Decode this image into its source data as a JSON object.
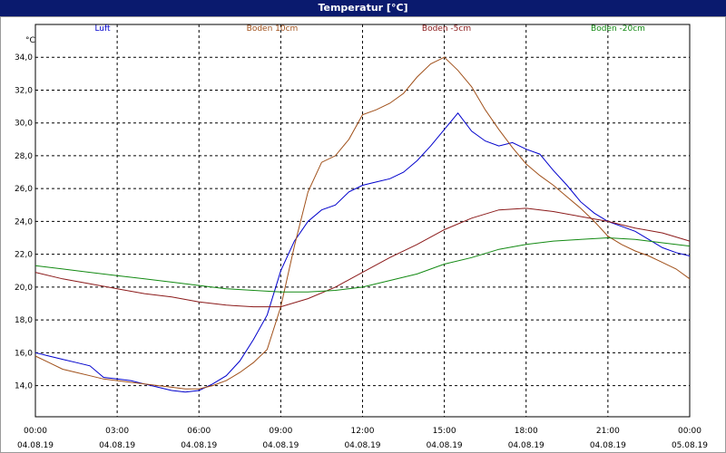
{
  "window": {
    "title": "Temperatur [°C]"
  },
  "chart_data": {
    "type": "line",
    "title": "Temperatur [°C]",
    "ylabel": "°C",
    "xlabel": "",
    "ylim": [
      12.1,
      36.0
    ],
    "xlim": [
      0,
      24
    ],
    "grid": true,
    "legend_placement": "top",
    "y_ticks": [
      "14,0",
      "16,0",
      "18,0",
      "20,0",
      "22,0",
      "24,0",
      "26,0",
      "28,0",
      "30,0",
      "32,0",
      "34,0"
    ],
    "y_tick_values": [
      14,
      16,
      18,
      20,
      22,
      24,
      26,
      28,
      30,
      32,
      34
    ],
    "x_ticks": [
      {
        "time": "00:00",
        "date": "04.08.19"
      },
      {
        "time": "03:00",
        "date": "04.08.19"
      },
      {
        "time": "06:00",
        "date": "04.08.19"
      },
      {
        "time": "09:00",
        "date": "04.08.19"
      },
      {
        "time": "12:00",
        "date": "04.08.19"
      },
      {
        "time": "15:00",
        "date": "04.08.19"
      },
      {
        "time": "18:00",
        "date": "04.08.19"
      },
      {
        "time": "21:00",
        "date": "04.08.19"
      },
      {
        "time": "00:00",
        "date": "05.08.19"
      }
    ],
    "x_tick_values": [
      0,
      3,
      6,
      9,
      12,
      15,
      18,
      21,
      24
    ],
    "series": [
      {
        "name": "Luft",
        "color": "#0000cc",
        "x": [
          0,
          0.5,
          1,
          1.5,
          2,
          2.5,
          3,
          3.5,
          4,
          4.5,
          5,
          5.5,
          6,
          6.5,
          7,
          7.5,
          8,
          8.5,
          9,
          9.5,
          10,
          10.5,
          11,
          11.5,
          12,
          12.5,
          13,
          13.5,
          14,
          14.5,
          15,
          15.5,
          16,
          16.5,
          17,
          17.5,
          18,
          18.5,
          19,
          19.5,
          20,
          20.5,
          21,
          21.5,
          22,
          22.5,
          23,
          23.5,
          24
        ],
        "values": [
          16.0,
          15.8,
          15.6,
          15.4,
          15.2,
          14.5,
          14.4,
          14.3,
          14.1,
          13.9,
          13.7,
          13.6,
          13.7,
          14.1,
          14.6,
          15.5,
          16.8,
          18.3,
          21.0,
          22.8,
          24.0,
          24.7,
          25.0,
          25.8,
          26.2,
          26.4,
          26.6,
          27.0,
          27.7,
          28.6,
          29.6,
          30.6,
          29.5,
          28.9,
          28.6,
          28.8,
          28.4,
          28.1,
          27.1,
          26.2,
          25.2,
          24.5,
          24.0,
          23.7,
          23.4,
          22.9,
          22.4,
          22.1,
          21.9
        ]
      },
      {
        "name": "Boden 10cm",
        "color": "#a0501a",
        "x": [
          0,
          0.5,
          1,
          1.5,
          2,
          2.5,
          3,
          3.5,
          4,
          4.5,
          5,
          5.5,
          6,
          6.5,
          7,
          7.5,
          8,
          8.5,
          9,
          9.5,
          10,
          10.5,
          11,
          11.5,
          12,
          12.5,
          13,
          13.5,
          14,
          14.5,
          15,
          15.5,
          16,
          16.5,
          17,
          17.5,
          18,
          18.5,
          19,
          19.5,
          20,
          20.5,
          21,
          21.5,
          22,
          22.5,
          23,
          23.5,
          24
        ],
        "values": [
          15.8,
          15.4,
          15.0,
          14.8,
          14.6,
          14.4,
          14.3,
          14.2,
          14.1,
          14.0,
          13.9,
          13.8,
          13.8,
          14.0,
          14.3,
          14.8,
          15.4,
          16.2,
          18.8,
          22.5,
          25.8,
          27.6,
          28.0,
          29.0,
          30.5,
          30.8,
          31.2,
          31.8,
          32.8,
          33.6,
          34.0,
          33.2,
          32.2,
          30.8,
          29.6,
          28.5,
          27.5,
          26.8,
          26.2,
          25.5,
          24.8,
          24.0,
          23.1,
          22.6,
          22.2,
          21.9,
          21.5,
          21.1,
          20.5
        ]
      },
      {
        "name": "Boden -5cm",
        "color": "#8b1a1a",
        "x": [
          0,
          1,
          2,
          3,
          4,
          5,
          6,
          7,
          8,
          9,
          10,
          11,
          12,
          13,
          14,
          15,
          16,
          17,
          18,
          19,
          20,
          21,
          22,
          23,
          24
        ],
        "values": [
          20.9,
          20.5,
          20.2,
          19.9,
          19.6,
          19.4,
          19.1,
          18.9,
          18.8,
          18.8,
          19.3,
          20.0,
          20.9,
          21.8,
          22.6,
          23.5,
          24.2,
          24.7,
          24.8,
          24.6,
          24.3,
          24.0,
          23.6,
          23.3,
          22.8
        ]
      },
      {
        "name": "Boden -20cm",
        "color": "#138a13",
        "x": [
          0,
          1,
          2,
          3,
          4,
          5,
          6,
          7,
          8,
          9,
          10,
          11,
          12,
          13,
          14,
          15,
          16,
          17,
          18,
          19,
          20,
          21,
          22,
          23,
          24
        ],
        "values": [
          21.3,
          21.1,
          20.9,
          20.7,
          20.5,
          20.3,
          20.1,
          19.9,
          19.8,
          19.7,
          19.7,
          19.8,
          20.0,
          20.4,
          20.8,
          21.4,
          21.8,
          22.3,
          22.6,
          22.8,
          22.9,
          23.0,
          22.9,
          22.7,
          22.5
        ]
      }
    ]
  }
}
